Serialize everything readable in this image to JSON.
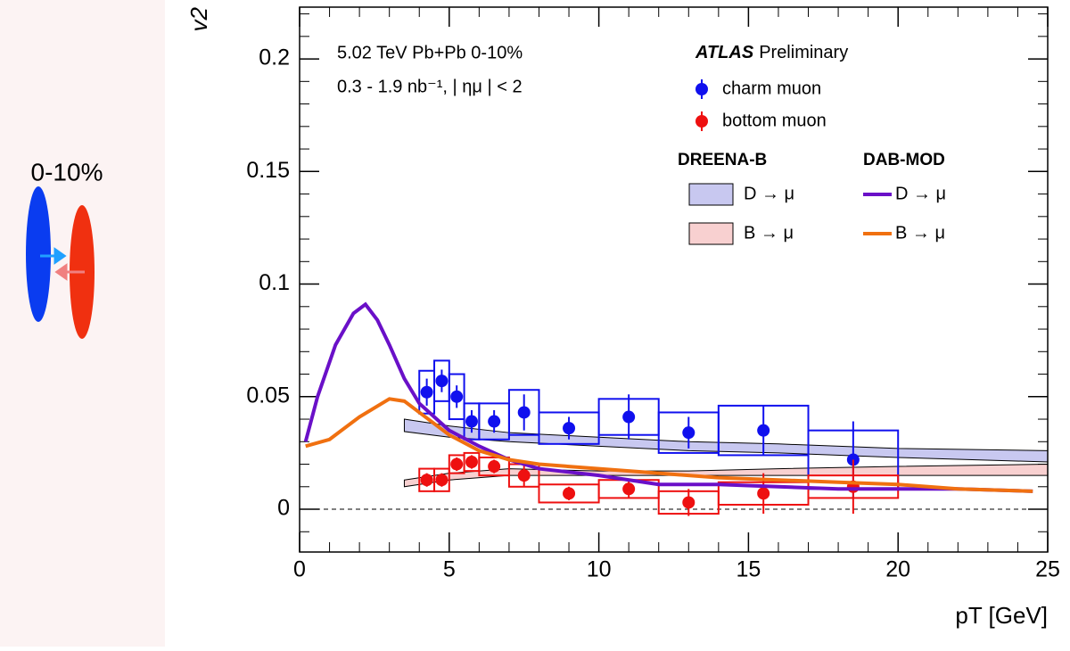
{
  "side_panel": {
    "label": "0-10%"
  },
  "chart_data": {
    "type": "errorbar",
    "annotations": [
      "5.02 TeV Pb+Pb 0-10%",
      "0.3 - 1.9 nb⁻¹, | ημ | < 2"
    ],
    "experiment": "ATLAS",
    "experiment_note": "Preliminary",
    "x_label": "pT [GeV]",
    "y_label": "v2",
    "xlim": [
      0,
      25
    ],
    "ylim": [
      -0.019,
      0.223
    ],
    "xticks": [
      0,
      5,
      10,
      15,
      20,
      25
    ],
    "yticks": [
      0,
      0.05,
      0.1,
      0.15,
      0.2
    ],
    "minor_divisions": 5,
    "reference_line": 0,
    "legend_groups": [
      "DREENA-B",
      "DAB-MOD"
    ],
    "series": [
      {
        "name": "charm muon",
        "kind": "points",
        "color": "#1010ee",
        "x": [
          4.25,
          4.75,
          5.25,
          5.75,
          6.5,
          7.5,
          9,
          11,
          13,
          15.5,
          18.5
        ],
        "values": [
          0.052,
          0.057,
          0.05,
          0.039,
          0.039,
          0.043,
          0.036,
          0.041,
          0.034,
          0.035,
          0.022
        ],
        "errors": [
          0.006,
          0.005,
          0.005,
          0.005,
          0.005,
          0.008,
          0.005,
          0.01,
          0.007,
          0.011,
          0.017
        ],
        "sys": [
          0.0095,
          0.009,
          0.01,
          0.008,
          0.008,
          0.01,
          0.007,
          0.008,
          0.009,
          0.011,
          0.013
        ],
        "x_lo": [
          4,
          4.5,
          5,
          5.5,
          6,
          7,
          8,
          10,
          12,
          14,
          17
        ],
        "x_hi": [
          4.5,
          5,
          5.5,
          6,
          7,
          8,
          10,
          12,
          14,
          17,
          20
        ]
      },
      {
        "name": "bottom muon",
        "kind": "points",
        "color": "#ee1010",
        "x": [
          4.25,
          4.75,
          5.25,
          5.75,
          6.5,
          7.5,
          9,
          11,
          13,
          15.5,
          18.5
        ],
        "values": [
          0.013,
          0.013,
          0.02,
          0.021,
          0.019,
          0.015,
          0.007,
          0.009,
          0.003,
          0.007,
          0.01
        ],
        "errors": [
          0.003,
          0.003,
          0.003,
          0.003,
          0.003,
          0.005,
          0.003,
          0.004,
          0.006,
          0.009,
          0.012
        ],
        "sys": [
          0.005,
          0.005,
          0.004,
          0.004,
          0.004,
          0.005,
          0.004,
          0.004,
          0.005,
          0.005,
          0.005
        ],
        "x_lo": [
          4,
          4.5,
          5,
          5.5,
          6,
          7,
          8,
          10,
          12,
          14,
          17
        ],
        "x_hi": [
          4.5,
          5,
          5.5,
          6,
          7,
          8,
          10,
          12,
          14,
          17,
          20
        ]
      },
      {
        "name": "D → μ",
        "kind": "band",
        "group": 0,
        "color": "#c8c8f0",
        "x": [
          3.5,
          5,
          7,
          10,
          13,
          16,
          20,
          25
        ],
        "upper": [
          0.04,
          0.037,
          0.034,
          0.032,
          0.03,
          0.029,
          0.027,
          0.026
        ],
        "lower": [
          0.0345,
          0.032,
          0.03,
          0.028,
          0.026,
          0.025,
          0.023,
          0.021
        ]
      },
      {
        "name": "B → μ",
        "kind": "band",
        "group": 0,
        "color": "#f8d0d0",
        "x": [
          3.5,
          5,
          7,
          10,
          13,
          16,
          20,
          25
        ],
        "upper": [
          0.013,
          0.016,
          0.018,
          0.017,
          0.017,
          0.018,
          0.019,
          0.02
        ],
        "lower": [
          0.01,
          0.013,
          0.015,
          0.015,
          0.015,
          0.015,
          0.015,
          0.015
        ]
      },
      {
        "name": "D → μ",
        "kind": "line",
        "group": 1,
        "color": "#6a10c8",
        "x": [
          0.2,
          0.6,
          1.2,
          1.8,
          2.2,
          2.6,
          3,
          3.5,
          4,
          5,
          6,
          7,
          8,
          10,
          12,
          14,
          16,
          18,
          20,
          22,
          24.5
        ],
        "values": [
          0.03,
          0.05,
          0.073,
          0.087,
          0.091,
          0.084,
          0.073,
          0.058,
          0.047,
          0.035,
          0.028,
          0.022,
          0.018,
          0.015,
          0.011,
          0.011,
          0.01,
          0.009,
          0.009,
          0.009,
          0.008
        ]
      },
      {
        "name": "B → μ",
        "kind": "line",
        "group": 1,
        "color": "#f07010",
        "x": [
          0.2,
          1,
          2,
          3,
          3.5,
          4,
          5,
          6,
          7,
          8,
          10,
          12,
          14,
          16,
          18,
          20,
          22,
          24.5
        ],
        "values": [
          0.028,
          0.031,
          0.041,
          0.049,
          0.048,
          0.043,
          0.033,
          0.026,
          0.022,
          0.02,
          0.018,
          0.016,
          0.014,
          0.013,
          0.012,
          0.011,
          0.009,
          0.008
        ]
      }
    ]
  }
}
